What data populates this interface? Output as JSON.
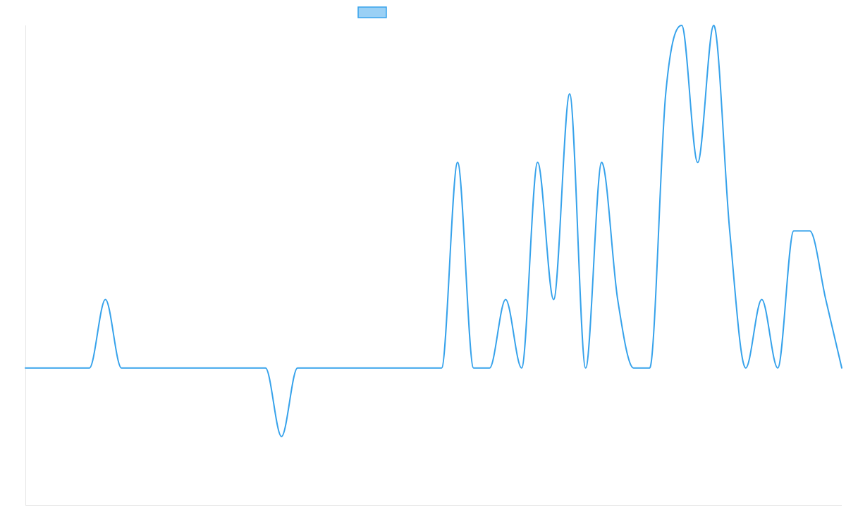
{
  "chart_data": {
    "type": "line",
    "x": [
      0,
      1,
      2,
      3,
      4,
      5,
      6,
      7,
      8,
      9,
      10,
      11,
      12,
      13,
      14,
      15,
      16,
      17,
      18,
      19,
      20,
      21,
      22,
      23,
      24,
      25,
      26,
      27,
      28,
      29,
      30,
      31,
      32,
      33,
      34,
      35,
      36,
      37,
      38,
      39,
      40,
      41,
      42,
      43,
      44,
      45,
      46,
      47,
      48,
      49,
      50,
      51
    ],
    "series": [
      {
        "values": [
          0,
          0,
          0,
          0,
          0,
          1,
          0,
          0,
          0,
          0,
          0,
          0,
          0,
          0,
          0,
          0,
          -1,
          0,
          0,
          0,
          0,
          0,
          0,
          0,
          0,
          0,
          0,
          3,
          0,
          0,
          1,
          0,
          3,
          1,
          4,
          0,
          3,
          1,
          0,
          0,
          4,
          5,
          3,
          5,
          2,
          0,
          1,
          0,
          2,
          2,
          1,
          0
        ],
        "color": "#36a2eb",
        "fill": "#9ad0f5"
      }
    ],
    "ylim": [
      -2,
      5
    ],
    "xlim": [
      0,
      51
    ],
    "grid": false,
    "legend": "top-center"
  }
}
